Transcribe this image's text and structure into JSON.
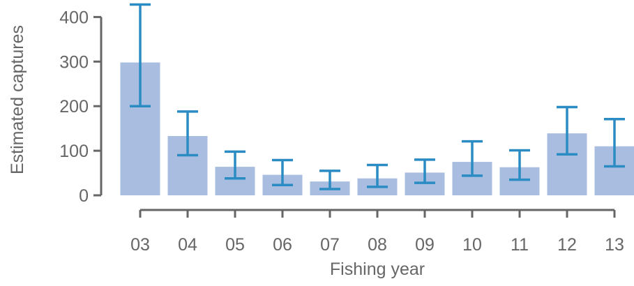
{
  "chart_data": {
    "type": "bar",
    "xlabel": "Fishing year",
    "ylabel": "Estimated captures",
    "categories": [
      "03",
      "04",
      "05",
      "06",
      "07",
      "08",
      "09",
      "10",
      "11",
      "12",
      "13"
    ],
    "values": [
      298,
      133,
      64,
      46,
      31,
      38,
      51,
      75,
      63,
      139,
      110
    ],
    "error_low": [
      200,
      90,
      38,
      23,
      14,
      19,
      28,
      44,
      35,
      92,
      65
    ],
    "error_high": [
      428,
      188,
      98,
      79,
      55,
      68,
      80,
      121,
      101,
      198,
      171
    ],
    "ylim": [
      0,
      430
    ],
    "yticks": [
      0,
      100,
      200,
      300,
      400
    ],
    "ytick_labels": [
      "0",
      "100",
      "200",
      "300",
      "400"
    ],
    "grid": false,
    "colors": {
      "bar": "#a8bddf",
      "error_bar": "#2b8cc4",
      "axis": "#666666"
    }
  }
}
